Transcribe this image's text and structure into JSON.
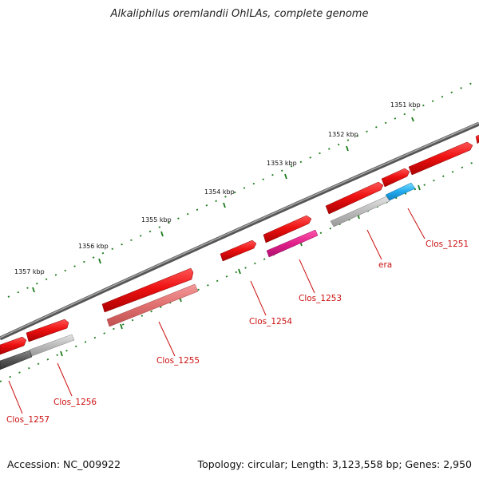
{
  "title": "Alkaliphilus oremlandii OhILAs, complete genome",
  "footer": {
    "accession": "Accession: NC_009922",
    "summary": "Topology: circular; Length: 3,123,558 bp; Genes: 2,950"
  },
  "scale": {
    "labels": [
      "1351 kbp",
      "1352 kbp",
      "1353 kbp",
      "1354 kbp",
      "1355 kbp",
      "1356 kbp",
      "1357 kbp"
    ]
  },
  "genes": {
    "labels": [
      "Clos_1251",
      "era",
      "Clos_1253",
      "Clos_1254",
      "Clos_1255",
      "Clos_1256",
      "Clos_1257"
    ]
  },
  "colors": {
    "backbone": "#777777",
    "gene_red": "#ee1111",
    "gene_pink": "#e8337f",
    "gene_magenta": "#e0208a",
    "gene_cyan": "#22aaee",
    "gene_gray": "#bbbbbb",
    "gene_dark": "#555555",
    "tick_green": "#1a7a1a",
    "label_red": "#cc1111"
  }
}
